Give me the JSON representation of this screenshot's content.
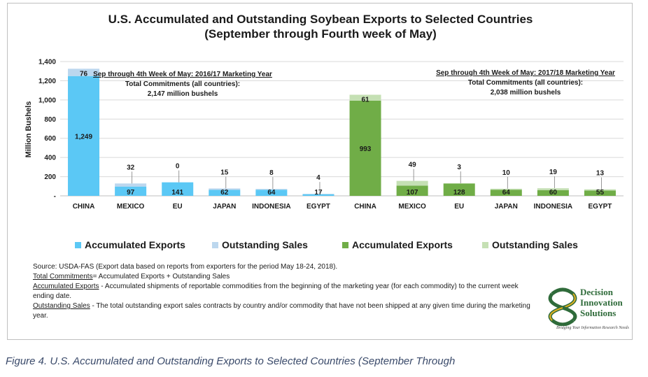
{
  "title_line1": "U.S. Accumulated and Outstanding Soybean Exports to Selected Countries",
  "title_line2": "(September through Fourth week of May)",
  "chart_data": {
    "type": "bar",
    "stacked": true,
    "ylabel": "Million Bushels",
    "ylim": [
      0,
      1400
    ],
    "yticks": [
      "-",
      "200",
      "400",
      "600",
      "800",
      "1,000",
      "1,200",
      "1,400"
    ],
    "categories": [
      "CHINA",
      "MEXICO",
      "EU",
      "JAPAN",
      "INDONESIA",
      "EGYPT",
      "CHINA",
      "MEXICO",
      "EU",
      "JAPAN",
      "INDONESIA",
      "EGYPT"
    ],
    "series": [
      {
        "name": "Accumulated Exports",
        "marketing_year": "2016/17",
        "values": [
          1249,
          97,
          141,
          62,
          64,
          17,
          null,
          null,
          null,
          null,
          null,
          null
        ],
        "labels": [
          "1,249",
          "97",
          "141",
          "62",
          "64",
          "17",
          "",
          "",
          "",
          "",
          "",
          ""
        ],
        "color": "#5bc8f5"
      },
      {
        "name": "Outstanding Sales",
        "marketing_year": "2016/17",
        "values": [
          76,
          32,
          0,
          15,
          8,
          4,
          null,
          null,
          null,
          null,
          null,
          null
        ],
        "labels": [
          "76",
          "32",
          "0",
          "15",
          "8",
          "4",
          "",
          "",
          "",
          "",
          "",
          ""
        ],
        "color": "#bcd7ee"
      },
      {
        "name": "Accumulated Exports",
        "marketing_year": "2017/18",
        "values": [
          null,
          null,
          null,
          null,
          null,
          null,
          993,
          107,
          128,
          64,
          60,
          55
        ],
        "labels": [
          "",
          "",
          "",
          "",
          "",
          "",
          "993",
          "107",
          "128",
          "64",
          "60",
          "55"
        ],
        "color": "#70ad47"
      },
      {
        "name": "Outstanding Sales",
        "marketing_year": "2017/18",
        "values": [
          null,
          null,
          null,
          null,
          null,
          null,
          61,
          49,
          3,
          10,
          19,
          13
        ],
        "labels": [
          "",
          "",
          "",
          "",
          "",
          "",
          "61",
          "49",
          "3",
          "10",
          "19",
          "13"
        ],
        "color": "#c5e0b4"
      }
    ],
    "annotations": {
      "left": {
        "heading": "Sep through 4th Week of May:  2016/17 Marketing Year",
        "line2": "Total Commitments (all countries):",
        "line3": "2,147 million bushels"
      },
      "right": {
        "heading": "Sep through 4th Week of May:  2017/18 Marketing Year",
        "line2": "Total Commitments (all countries):",
        "line3": "2,038 million bushels"
      }
    },
    "legend_position": "bottom",
    "grid": true
  },
  "legend": [
    {
      "label": "Accumulated Exports",
      "color": "#5bc8f5"
    },
    {
      "label": "Outstanding Sales",
      "color": "#bcd7ee"
    },
    {
      "label": "Accumulated Exports",
      "color": "#70ad47"
    },
    {
      "label": "Outstanding Sales",
      "color": "#c5e0b4"
    }
  ],
  "notes": {
    "source": "Source: USDA-FAS (Export data based on reports from exporters for the period May 18-24, 2018).",
    "total_commitments_term": "Total Commitments",
    "total_commitments_def": "= Accumulated Exports + Outstanding Sales",
    "accumulated_term": "Accumulated Exports",
    "accumulated_def": " - Accumulated shipments of reportable commodities from the beginning of the marketing year (for each commodity) to the current week ending date.",
    "outstanding_term": "Outstanding Sales",
    "outstanding_def": " - The total outstanding export sales contracts by country and/or commodity that have not been shipped at any given time during the marketing year."
  },
  "logo": {
    "line1": "Decision",
    "line2": "Innovation",
    "line3": "Solutions",
    "tagline": "Bridging Your Information Research Needs"
  },
  "caption": "Figure 4. U.S. Accumulated and Outstanding Exports to Selected Countries (September Through"
}
